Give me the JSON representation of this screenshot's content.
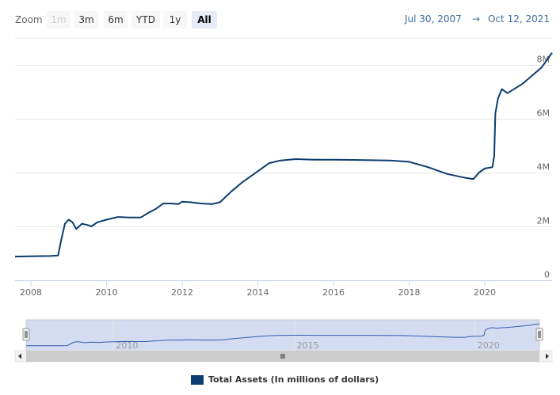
{
  "toolbar": {
    "zoom_label": "Zoom",
    "buttons": [
      {
        "label": "1m",
        "state": "disabled"
      },
      {
        "label": "3m",
        "state": "normal"
      },
      {
        "label": "6m",
        "state": "normal"
      },
      {
        "label": "YTD",
        "state": "normal"
      },
      {
        "label": "1y",
        "state": "normal"
      },
      {
        "label": "All",
        "state": "active"
      }
    ],
    "range_from": "Jul 30, 2007",
    "range_sep": "→",
    "range_to": "Oct 12, 2021"
  },
  "chart_data": {
    "type": "line",
    "title": "",
    "xlabel": "",
    "ylabel": "",
    "xlim": [
      2007.58,
      2021.78
    ],
    "ylim": [
      0,
      9000000
    ],
    "x_ticks": [
      "2008",
      "2010",
      "2012",
      "2014",
      "2016",
      "2018",
      "2020"
    ],
    "y_ticks": [
      "0",
      "2M",
      "4M",
      "6M",
      "8M"
    ],
    "y_tick_values": [
      0,
      2000000,
      4000000,
      6000000,
      8000000
    ],
    "grid": true,
    "legend_position": "bottom",
    "series": [
      {
        "name": "Total Assets (In millions of dollars)",
        "color": "#0b3c6e",
        "x": [
          2007.58,
          2008.0,
          2008.5,
          2008.72,
          2008.8,
          2008.9,
          2009.0,
          2009.1,
          2009.2,
          2009.35,
          2009.5,
          2009.6,
          2009.75,
          2010.0,
          2010.3,
          2010.6,
          2010.9,
          2011.1,
          2011.3,
          2011.5,
          2011.7,
          2011.9,
          2012.0,
          2012.2,
          2012.5,
          2012.8,
          2013.0,
          2013.3,
          2013.6,
          2014.0,
          2014.3,
          2014.6,
          2015.0,
          2015.5,
          2016.0,
          2016.5,
          2017.0,
          2017.5,
          2018.0,
          2018.5,
          2019.0,
          2019.5,
          2019.7,
          2019.85,
          2020.0,
          2020.2,
          2020.25,
          2020.28,
          2020.35,
          2020.45,
          2020.6,
          2021.0,
          2021.5,
          2021.78
        ],
        "values": [
          880000,
          890000,
          900000,
          920000,
          1500000,
          2100000,
          2250000,
          2150000,
          1900000,
          2100000,
          2050000,
          2000000,
          2150000,
          2250000,
          2350000,
          2330000,
          2330000,
          2500000,
          2650000,
          2850000,
          2850000,
          2830000,
          2920000,
          2900000,
          2850000,
          2830000,
          2900000,
          3300000,
          3650000,
          4050000,
          4350000,
          4450000,
          4500000,
          4480000,
          4480000,
          4470000,
          4460000,
          4450000,
          4400000,
          4200000,
          3950000,
          3800000,
          3760000,
          4000000,
          4150000,
          4200000,
          4600000,
          6200000,
          6750000,
          7100000,
          6950000,
          7300000,
          7900000,
          8450000
        ]
      }
    ]
  },
  "navigator": {
    "x_ticks": [
      "2010",
      "2015",
      "2020"
    ]
  }
}
